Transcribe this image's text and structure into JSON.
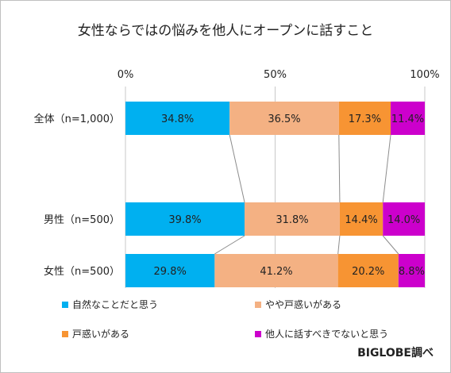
{
  "chart_data": {
    "type": "bar",
    "orientation": "horizontal",
    "stacked": "percent",
    "title": "女性ならではの悩みを他人にオープンに話すこと",
    "x_ticks": [
      "0%",
      "50%",
      "100%"
    ],
    "xlim": [
      0,
      100
    ],
    "categories": [
      "全体（n=1,000）",
      "男性（n=500）",
      "女性（n=500）"
    ],
    "series": [
      {
        "name": "自然なことだと思う",
        "color": "#00b0f0",
        "values": [
          34.8,
          39.8,
          29.8
        ],
        "labels": [
          "34.8%",
          "39.8%",
          "29.8%"
        ]
      },
      {
        "name": "やや戸惑いがある",
        "color": "#f4b183",
        "values": [
          36.5,
          31.8,
          41.2
        ],
        "labels": [
          "36.5%",
          "31.8%",
          "41.2%"
        ]
      },
      {
        "name": "戸惑いがある",
        "color": "#f79433",
        "values": [
          17.3,
          14.4,
          20.2
        ],
        "labels": [
          "17.3%",
          "14.4%",
          "20.2%"
        ]
      },
      {
        "name": "他人に話すべきでないと思う",
        "color": "#cc00cc",
        "values": [
          11.4,
          14.0,
          8.8
        ],
        "labels": [
          "11.4%",
          "14.0%",
          "8.8%"
        ]
      }
    ],
    "legend_position": "bottom",
    "gridlines": "vertical at tick positions",
    "series_connector_lines": true
  },
  "credit": "BIGLOBE調べ"
}
